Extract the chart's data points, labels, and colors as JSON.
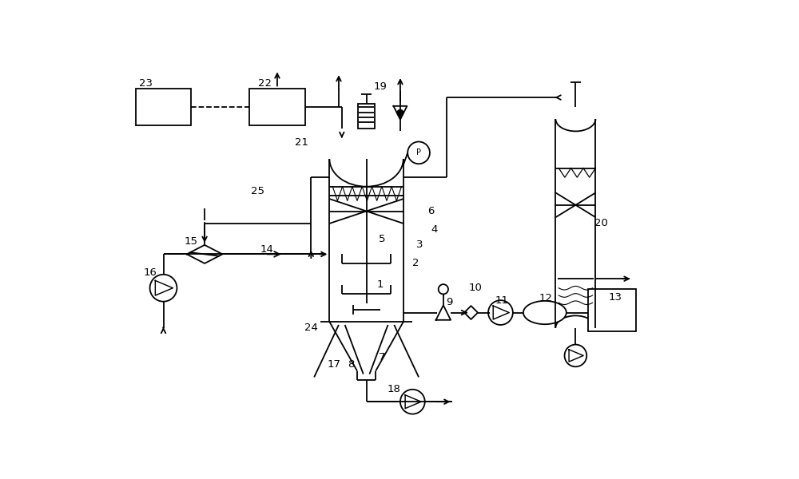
{
  "bg": "#ffffff",
  "lc": "#000000",
  "lw": 1.3,
  "fw": 10.0,
  "fh": 6.0
}
